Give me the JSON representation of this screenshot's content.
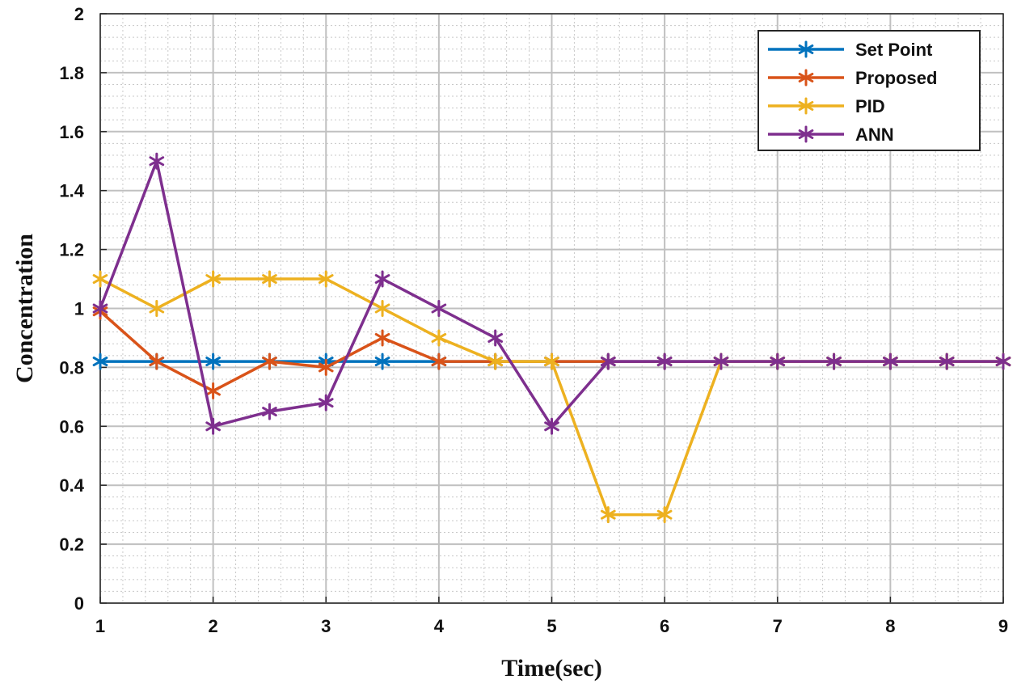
{
  "chart_data": {
    "type": "line",
    "xlabel": "Time(sec)",
    "ylabel": "Concentration",
    "xlim": [
      1,
      9
    ],
    "ylim": [
      0,
      2
    ],
    "xticks": [
      1,
      2,
      3,
      4,
      5,
      6,
      7,
      8,
      9
    ],
    "yticks": [
      0,
      0.2,
      0.4,
      0.6,
      0.8,
      1,
      1.2,
      1.4,
      1.6,
      1.8,
      2
    ],
    "ytick_labels": [
      "0",
      "0.2",
      "0.4",
      "0.6",
      "0.8",
      "1",
      "1.2",
      "1.4",
      "1.6",
      "1.8",
      "2"
    ],
    "grid": true,
    "minor_grid": true,
    "legend_position": "top-right",
    "marker": "asterisk",
    "x": [
      1,
      1.5,
      2,
      2.5,
      3,
      3.5,
      4,
      4.5,
      5,
      5.5,
      6,
      6.5,
      7,
      7.5,
      8,
      8.5,
      9
    ],
    "series": [
      {
        "name": "Set Point",
        "color": "#0072BD",
        "values": [
          0.82,
          0.82,
          0.82,
          0.82,
          0.82,
          0.82,
          0.82,
          0.82,
          0.82,
          0.82,
          0.82,
          0.82,
          0.82,
          0.82,
          0.82,
          0.82,
          0.82
        ]
      },
      {
        "name": "Proposed",
        "color": "#D95319",
        "values": [
          0.99,
          0.82,
          0.72,
          0.82,
          0.8,
          0.9,
          0.82,
          0.82,
          0.82,
          0.82,
          0.82,
          0.82,
          0.82,
          0.82,
          0.82,
          0.82,
          0.82
        ]
      },
      {
        "name": "PID",
        "color": "#EDB120",
        "values": [
          1.1,
          1.0,
          1.1,
          1.1,
          1.1,
          1.0,
          0.9,
          0.82,
          0.82,
          0.3,
          0.3,
          0.82,
          0.82,
          0.82,
          0.82,
          0.82,
          0.82
        ]
      },
      {
        "name": "ANN",
        "color": "#7E2F8E",
        "values": [
          1.0,
          1.5,
          0.6,
          0.65,
          0.68,
          1.1,
          1.0,
          0.9,
          0.6,
          0.82,
          0.82,
          0.82,
          0.82,
          0.82,
          0.82,
          0.82,
          0.82
        ]
      }
    ]
  }
}
